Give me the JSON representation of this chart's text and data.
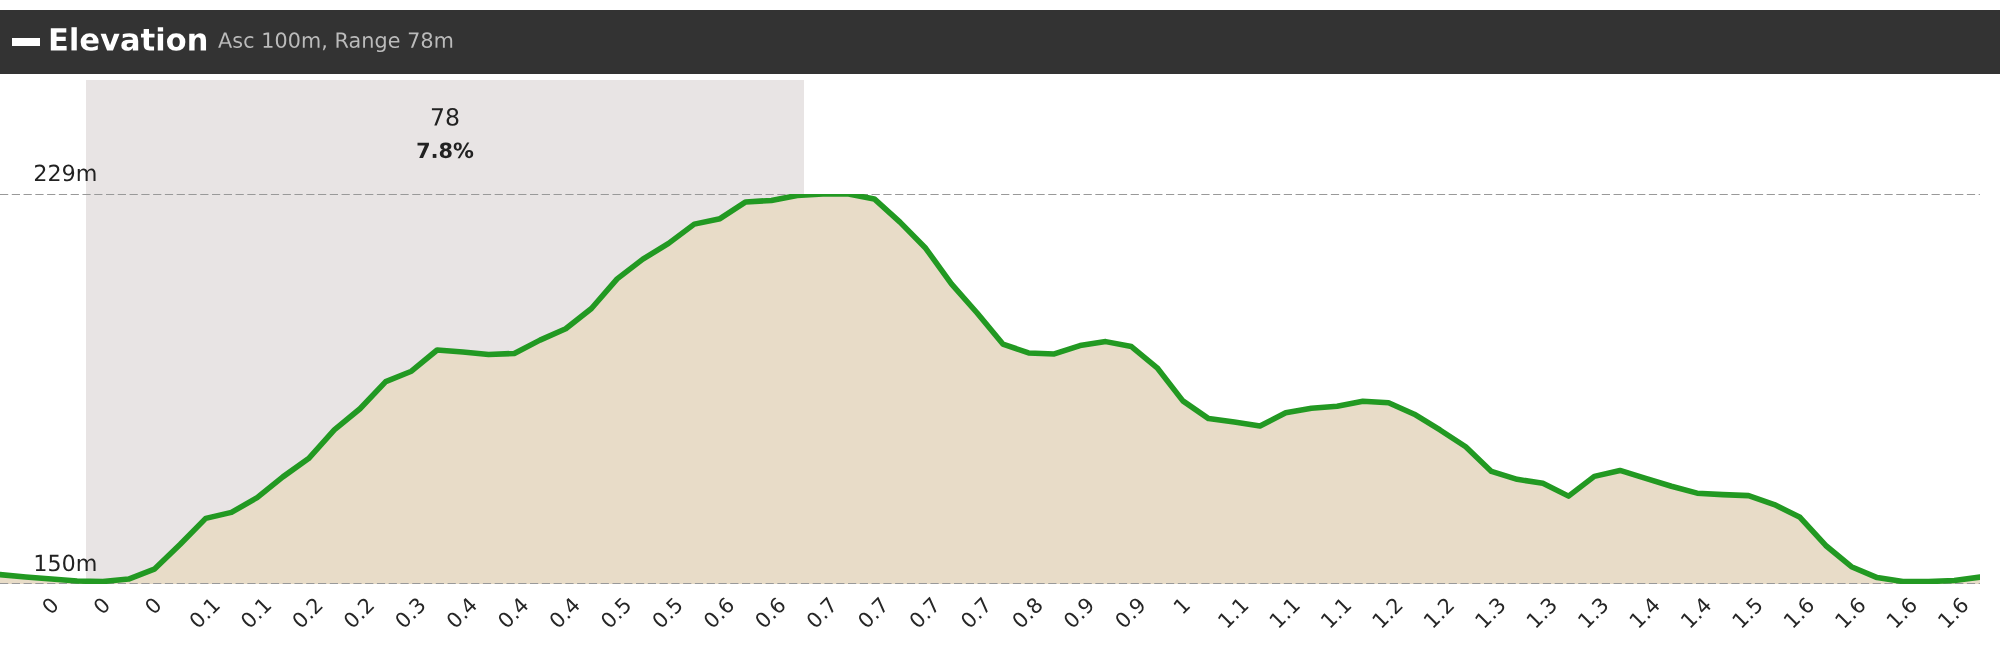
{
  "chart_data": {
    "type": "area",
    "title": "Elevation",
    "subtitle": "Asc 100m, Range 78m",
    "categories": [
      null,
      null,
      "0",
      null,
      "0",
      null,
      "0",
      null,
      "0.1",
      null,
      "0.1",
      null,
      "0.2",
      null,
      "0.2",
      null,
      "0.3",
      null,
      "0.4",
      null,
      "0.4",
      null,
      "0.4",
      null,
      "0.5",
      null,
      "0.5",
      null,
      "0.6",
      null,
      "0.6",
      null,
      "0.7",
      null,
      "0.7",
      null,
      "0.7",
      null,
      "0.7",
      null,
      "0.8",
      null,
      "0.9",
      null,
      "0.9",
      null,
      "1",
      null,
      "1.1",
      null,
      "1.1",
      null,
      "1.1",
      null,
      "1.2",
      null,
      "1.2",
      null,
      "1.3",
      null,
      "1.3",
      null,
      "1.3",
      null,
      "1.4",
      null,
      "1.4",
      null,
      "1.5",
      null,
      "1.6",
      null,
      "1.6",
      null,
      "1.6",
      null,
      "1.6",
      null
    ],
    "series": [
      {
        "color": "#229922",
        "values": [
          151.9,
          151.4,
          151.0,
          150.6,
          150.5,
          151.0,
          153.0,
          158.0,
          163.3,
          164.5,
          167.5,
          171.7,
          175.4,
          181.2,
          185.5,
          191.0,
          193.1,
          197.4,
          197.0,
          196.5,
          196.7,
          199.4,
          201.7,
          205.8,
          211.8,
          215.8,
          219.0,
          222.9,
          224.0,
          227.4,
          227.7,
          228.7,
          229,
          229,
          228.0,
          223.3,
          218.0,
          210.8,
          204.9,
          198.6,
          196.8,
          196.6,
          198.3,
          199.1,
          198.1,
          193.8,
          187.1,
          183.5,
          182.8,
          182.0,
          184.7,
          185.6,
          186.0,
          187.0,
          186.7,
          184.4,
          181.2,
          177.8,
          172.8,
          171.2,
          170.4,
          167.8,
          171.8,
          173.0,
          171.4,
          169.8,
          168.4,
          168.1,
          167.9,
          166.1,
          163.5,
          157.8,
          153.5,
          151.3,
          150.5,
          150.5,
          150.7,
          151.4
        ]
      }
    ],
    "yticks": [
      {
        "value": 150,
        "label": "150m"
      },
      {
        "value": 229,
        "label": "229m"
      }
    ],
    "ylim": [
      150,
      229
    ],
    "grid": "y",
    "annotations": [
      "78",
      "7.8%"
    ]
  }
}
